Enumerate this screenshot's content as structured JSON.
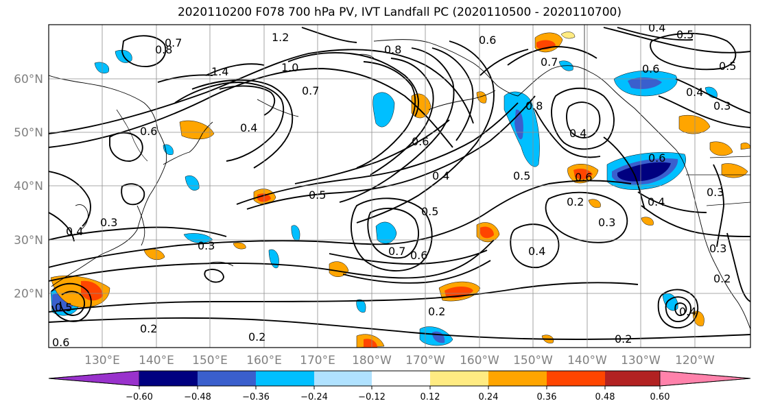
{
  "title": "2020110200 F078 700 hPa PV, IVT Landfall PC (2020110500 - 2020110700)",
  "lat_labels": [
    "60°N",
    "50°N",
    "40°N",
    "30°N",
    "20°N"
  ],
  "lon_labels": [
    "130°E",
    "140°E",
    "150°E",
    "160°E",
    "170°E",
    "180°W",
    "170°W",
    "160°W",
    "150°W",
    "140°W",
    "130°W",
    "120°W"
  ],
  "contour_labels": [
    "0.7",
    "0.8",
    "1.2",
    "1.4",
    "1.0",
    "0.7",
    "0.6",
    "0.8",
    "0.6",
    "0.7",
    "0.6",
    "0.4",
    "0.5",
    "0.5",
    "0.8",
    "0.4",
    "0.6",
    "0.4",
    "0.5",
    "0.7",
    "0.6",
    "0.5",
    "0.4",
    "0.6",
    "0.2",
    "0.3",
    "0.4",
    "0.3",
    "0.3",
    "0.2",
    "0.2",
    "0.2",
    "0.5",
    "0.4",
    "0.2",
    "0.4",
    "0.6",
    "0.3",
    "0.2",
    "0.6",
    "0.4",
    "0.3",
    "0.3",
    "0.4",
    "0.5"
  ],
  "colorbar": {
    "ticks": [
      "−0.60",
      "−0.48",
      "−0.36",
      "−0.24",
      "−0.12",
      "0.12",
      "0.24",
      "0.36",
      "0.48",
      "0.60"
    ],
    "colors": [
      "#9932cc",
      "#000080",
      "#3a5fcd",
      "#00bfff",
      "#b0e2ff",
      "#ffffff",
      "#ffeb82",
      "#ffa500",
      "#ff4500",
      "#b22222",
      "#ff82ab"
    ]
  }
}
